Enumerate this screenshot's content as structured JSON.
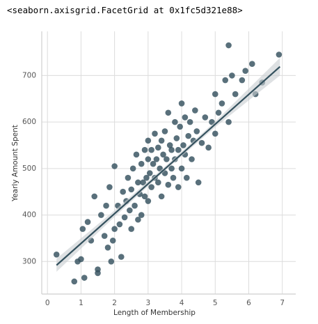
{
  "output": "<seaborn.axisgrid.FacetGrid at 0x1fc5d321e88>",
  "chart_data": {
    "type": "scatter",
    "xlabel": "Length of Membership",
    "ylabel": "Yearly Amount Spent",
    "color": "#34515e",
    "line_color": "#34515e",
    "band_color": "#c8cdd0",
    "grid": true,
    "xlim": [
      -0.17,
      7.4
    ],
    "ylim": [
      230,
      795
    ],
    "xticks": [
      0,
      1,
      2,
      3,
      4,
      5,
      6,
      7
    ],
    "yticks": [
      300,
      400,
      500,
      600,
      700
    ],
    "x": [
      0.27,
      0.8,
      0.9,
      1.0,
      1.05,
      1.1,
      1.2,
      1.3,
      1.4,
      1.5,
      1.5,
      1.6,
      1.7,
      1.75,
      1.8,
      1.85,
      1.9,
      1.95,
      2.0,
      2.0,
      2.1,
      2.15,
      2.2,
      2.25,
      2.3,
      2.35,
      2.4,
      2.45,
      2.5,
      2.5,
      2.55,
      2.6,
      2.65,
      2.7,
      2.7,
      2.75,
      2.8,
      2.8,
      2.85,
      2.9,
      2.9,
      2.95,
      3.0,
      3.0,
      3.0,
      3.05,
      3.1,
      3.1,
      3.15,
      3.2,
      3.2,
      3.25,
      3.3,
      3.3,
      3.35,
      3.4,
      3.4,
      3.45,
      3.5,
      3.5,
      3.55,
      3.6,
      3.6,
      3.65,
      3.7,
      3.7,
      3.75,
      3.8,
      3.8,
      3.85,
      3.9,
      3.9,
      3.95,
      4.0,
      4.0,
      4.05,
      4.1,
      4.1,
      4.15,
      4.2,
      4.25,
      4.3,
      4.35,
      4.4,
      4.45,
      4.5,
      4.6,
      4.7,
      4.8,
      4.9,
      5.0,
      5.0,
      5.1,
      5.2,
      5.3,
      5.4,
      5.4,
      5.5,
      5.6,
      5.8,
      5.9,
      6.1,
      6.2,
      6.4,
      6.9
    ],
    "y": [
      315,
      257,
      300,
      305,
      370,
      265,
      385,
      345,
      440,
      275,
      283,
      400,
      355,
      420,
      330,
      460,
      300,
      345,
      505,
      370,
      420,
      380,
      310,
      450,
      395,
      430,
      480,
      410,
      455,
      370,
      500,
      420,
      530,
      390,
      470,
      445,
      510,
      400,
      470,
      540,
      440,
      480,
      520,
      560,
      430,
      490,
      460,
      540,
      510,
      480,
      575,
      520,
      470,
      545,
      500,
      560,
      440,
      530,
      580,
      490,
      520,
      620,
      465,
      550,
      500,
      540,
      480,
      600,
      520,
      565,
      460,
      540,
      590,
      500,
      640,
      550,
      530,
      610,
      480,
      570,
      600,
      520,
      560,
      625,
      580,
      470,
      555,
      610,
      545,
      600,
      660,
      575,
      620,
      640,
      690,
      765,
      600,
      700,
      660,
      690,
      710,
      725,
      660,
      685,
      745
    ],
    "regression": {
      "x": [
        0.27,
        6.93
      ],
      "y": [
        292,
        719
      ]
    },
    "ci_band": {
      "x": [
        0.27,
        2,
        3.5,
        5,
        6.93
      ],
      "lower": [
        278,
        396,
        495,
        589,
        700
      ],
      "upper": [
        306,
        410,
        504,
        601,
        738
      ]
    }
  }
}
